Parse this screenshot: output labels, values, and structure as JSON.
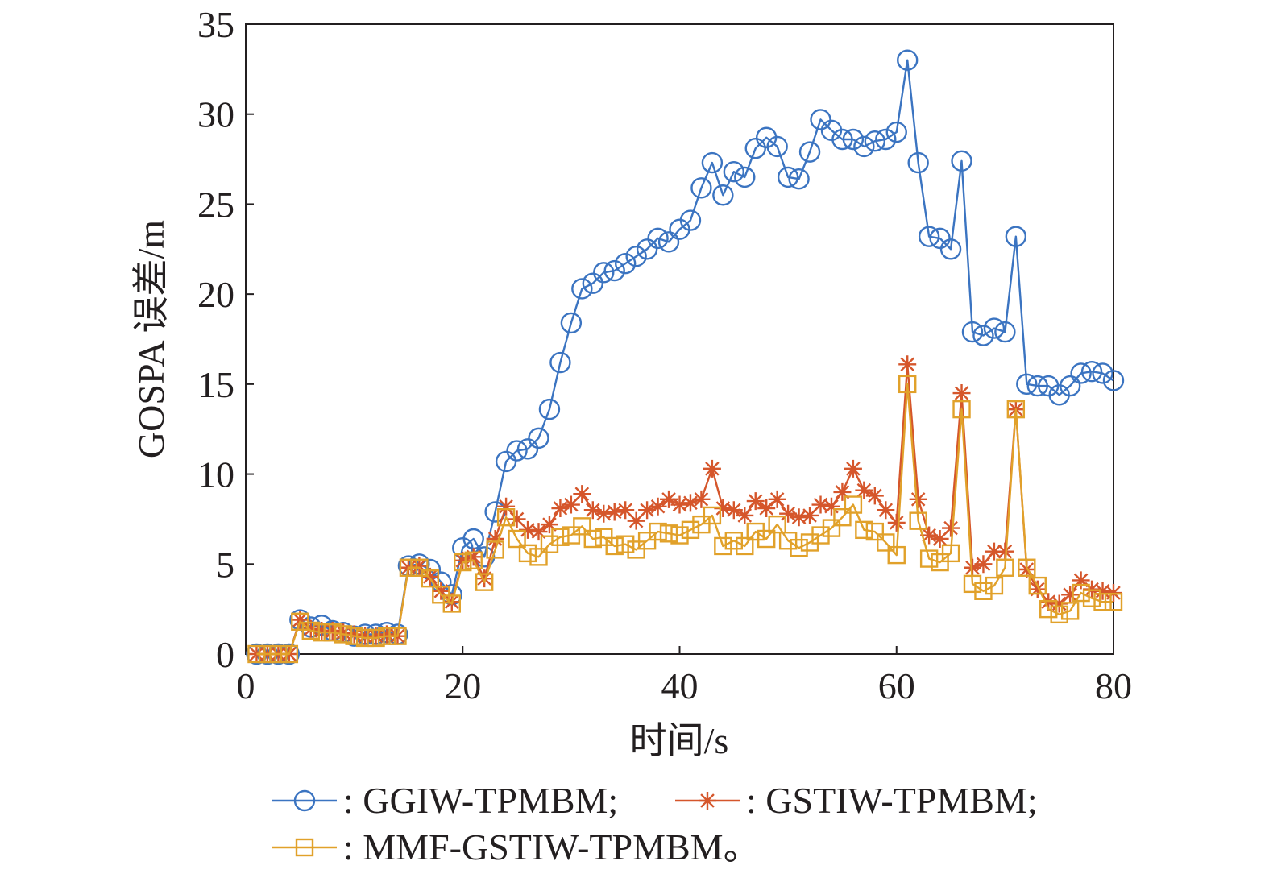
{
  "chart_data": {
    "type": "line",
    "xlabel": "时间/s",
    "ylabel": "GOSPA 误差/m",
    "xlim": [
      0,
      80
    ],
    "ylim": [
      0,
      35
    ],
    "xticks": [
      0,
      20,
      40,
      60,
      80
    ],
    "yticks": [
      0,
      5,
      10,
      15,
      20,
      25,
      30,
      35
    ],
    "grid": false,
    "legend_position": "bottom",
    "x": [
      1,
      2,
      3,
      4,
      5,
      6,
      7,
      8,
      9,
      10,
      11,
      12,
      13,
      14,
      15,
      16,
      17,
      18,
      19,
      20,
      21,
      22,
      23,
      24,
      25,
      26,
      27,
      28,
      29,
      30,
      31,
      32,
      33,
      34,
      35,
      36,
      37,
      38,
      39,
      40,
      41,
      42,
      43,
      44,
      45,
      46,
      47,
      48,
      49,
      50,
      51,
      52,
      53,
      54,
      55,
      56,
      57,
      58,
      59,
      60,
      61,
      62,
      63,
      64,
      65,
      66,
      67,
      68,
      69,
      70,
      71,
      72,
      73,
      74,
      75,
      76,
      77,
      78,
      79,
      80
    ],
    "series": [
      {
        "name": "GGIW-TPMBM",
        "legend_label": ": GGIW-TPMBM;",
        "color": "#3b74c1",
        "marker": "circle",
        "values": [
          0,
          0,
          0,
          0,
          1.9,
          1.5,
          1.6,
          1.3,
          1.2,
          1.0,
          1.1,
          1.1,
          1.2,
          1.1,
          4.9,
          5.0,
          4.7,
          4.0,
          3.3,
          5.9,
          6.4,
          5.4,
          7.9,
          10.7,
          11.3,
          11.4,
          12.0,
          13.6,
          16.2,
          18.4,
          20.3,
          20.6,
          21.2,
          21.3,
          21.7,
          22.1,
          22.5,
          23.1,
          22.9,
          23.6,
          24.1,
          25.9,
          27.3,
          25.5,
          26.8,
          26.5,
          28.1,
          28.7,
          28.2,
          26.5,
          26.4,
          27.9,
          29.7,
          29.1,
          28.6,
          28.6,
          28.2,
          28.5,
          28.6,
          29.0,
          33.0,
          27.3,
          23.2,
          23.1,
          22.5,
          27.4,
          17.9,
          17.7,
          18.1,
          17.9,
          23.2,
          15.0,
          14.9,
          14.9,
          14.4,
          14.9,
          15.6,
          15.7,
          15.6,
          15.2
        ]
      },
      {
        "name": "GSTIW-TPMBM",
        "legend_label": ": GSTIW-TPMBM;",
        "color": "#d5562b",
        "marker": "asterisk",
        "values": [
          0,
          0,
          0,
          0,
          1.9,
          1.4,
          1.3,
          1.3,
          1.2,
          1.1,
          1.0,
          1.0,
          1.1,
          1.0,
          4.8,
          4.9,
          4.3,
          3.5,
          2.9,
          5.2,
          5.4,
          4.2,
          6.4,
          8.2,
          7.5,
          6.9,
          6.8,
          7.2,
          8.1,
          8.3,
          8.9,
          8.0,
          7.8,
          7.9,
          8.0,
          7.4,
          8.0,
          8.2,
          8.6,
          8.3,
          8.4,
          8.6,
          10.3,
          8.1,
          8.0,
          7.7,
          8.5,
          8.1,
          8.6,
          7.8,
          7.6,
          7.7,
          8.3,
          8.2,
          9.0,
          10.3,
          9.1,
          8.8,
          8.0,
          7.3,
          16.1,
          8.6,
          6.6,
          6.4,
          7.0,
          14.5,
          4.8,
          5.0,
          5.7,
          5.7,
          13.6,
          4.7,
          3.6,
          2.9,
          2.8,
          3.3,
          4.1,
          3.6,
          3.5,
          3.4
        ]
      },
      {
        "name": "MMF-GSTIW-TPMBM",
        "legend_label": ": MMF-GSTIW-TPMBM。",
        "color": "#e1a12a",
        "marker": "square",
        "values": [
          0,
          0,
          0,
          0,
          1.8,
          1.3,
          1.2,
          1.2,
          1.1,
          1.0,
          0.9,
          0.9,
          1.0,
          1.0,
          4.8,
          4.8,
          4.2,
          3.3,
          2.8,
          5.1,
          5.2,
          4.0,
          5.8,
          7.6,
          6.4,
          5.6,
          5.4,
          6.1,
          6.5,
          6.6,
          7.1,
          6.4,
          6.5,
          6.0,
          6.1,
          5.8,
          6.3,
          6.8,
          6.7,
          6.6,
          6.9,
          7.2,
          7.7,
          6.0,
          6.3,
          6.0,
          6.8,
          6.4,
          7.2,
          6.3,
          5.9,
          6.2,
          6.6,
          7.0,
          7.6,
          8.3,
          6.9,
          6.8,
          6.2,
          5.5,
          15.0,
          7.4,
          5.3,
          5.1,
          5.6,
          13.6,
          3.9,
          3.5,
          3.8,
          4.8,
          13.6,
          4.8,
          3.8,
          2.5,
          2.2,
          2.4,
          3.4,
          3.1,
          2.9,
          2.9
        ]
      }
    ]
  }
}
